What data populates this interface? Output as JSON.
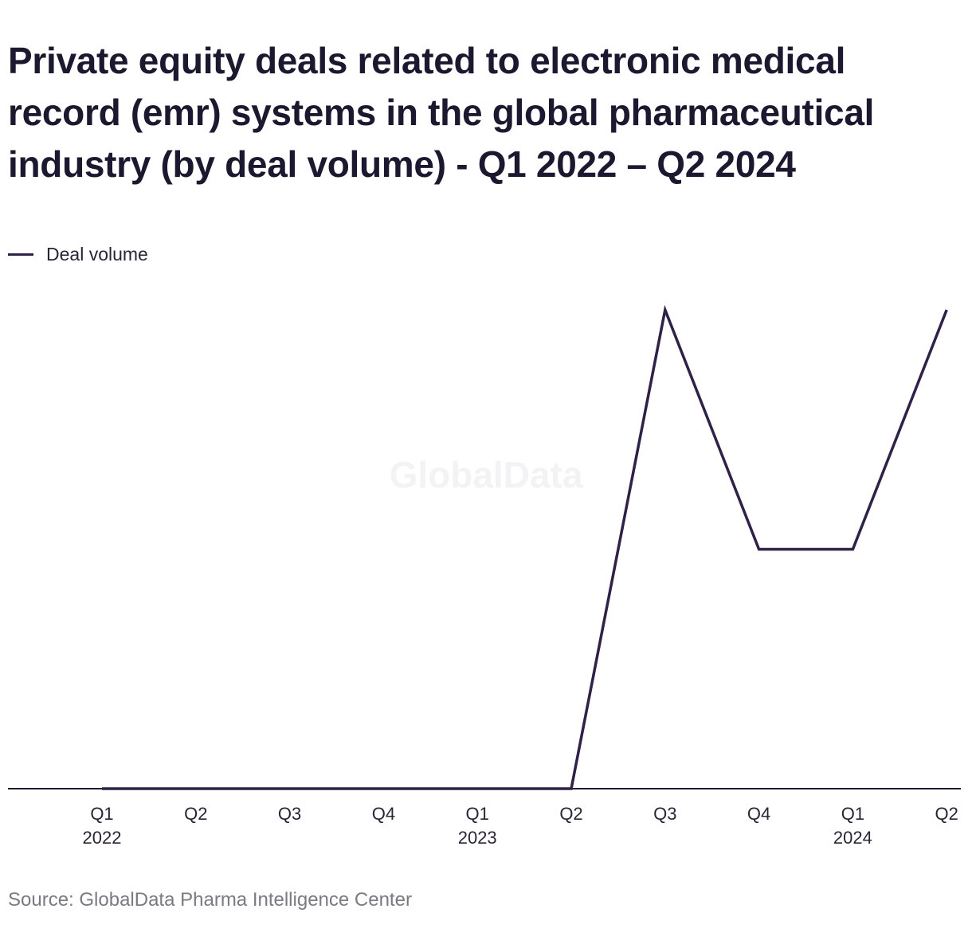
{
  "chart_data": {
    "type": "line",
    "title": "Private equity deals related to electronic medical record (emr) systems in the global pharmaceutical industry (by deal volume) - Q1 2022 – Q2 2024",
    "categories": [
      "Q1 2022",
      "Q2 2022",
      "Q3 2022",
      "Q4 2022",
      "Q1 2023",
      "Q2 2023",
      "Q3 2023",
      "Q4 2023",
      "Q1 2024",
      "Q2 2024"
    ],
    "tick_labels": [
      {
        "quarter": "Q1",
        "year": "2022"
      },
      {
        "quarter": "Q2",
        "year": ""
      },
      {
        "quarter": "Q3",
        "year": ""
      },
      {
        "quarter": "Q4",
        "year": ""
      },
      {
        "quarter": "Q1",
        "year": "2023"
      },
      {
        "quarter": "Q2",
        "year": ""
      },
      {
        "quarter": "Q3",
        "year": ""
      },
      {
        "quarter": "Q4",
        "year": ""
      },
      {
        "quarter": "Q1",
        "year": "2024"
      },
      {
        "quarter": "Q2",
        "year": ""
      }
    ],
    "series": [
      {
        "name": "Deal volume",
        "values": [
          0,
          0,
          0,
          0,
          0,
          0,
          2,
          1,
          1,
          2
        ],
        "color": "#2f2148"
      }
    ],
    "xlabel": "",
    "ylabel": "",
    "ylim": [
      0,
      2
    ],
    "grid": false,
    "legend_position": "top-left"
  },
  "watermark": "GlobalData",
  "source": "Source: GlobalData Pharma Intelligence Center"
}
